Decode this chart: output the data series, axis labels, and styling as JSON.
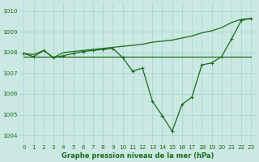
{
  "title": "Graphe pression niveau de la mer (hPa)",
  "background_color": "#cbe8e3",
  "line_color": "#1a6b1a",
  "grid_color": "#b0d8d2",
  "xlim": [
    -0.5,
    23.5
  ],
  "ylim": [
    1003.6,
    1010.4
  ],
  "yticks": [
    1004,
    1005,
    1006,
    1007,
    1008,
    1009,
    1010
  ],
  "xticks": [
    0,
    1,
    2,
    3,
    4,
    5,
    6,
    7,
    8,
    9,
    10,
    11,
    12,
    13,
    14,
    15,
    16,
    17,
    18,
    19,
    20,
    21,
    22,
    23
  ],
  "series_flat": {
    "x": [
      0,
      23
    ],
    "y": [
      1007.8,
      1007.8
    ]
  },
  "series_rising": {
    "x": [
      0,
      1,
      2,
      3,
      4,
      5,
      6,
      7,
      8,
      9,
      10,
      11,
      12,
      13,
      14,
      15,
      16,
      17,
      18,
      19,
      20,
      21,
      22,
      23
    ],
    "y": [
      1007.95,
      1007.9,
      1008.1,
      1007.75,
      1008.0,
      1008.05,
      1008.1,
      1008.15,
      1008.2,
      1008.25,
      1008.3,
      1008.35,
      1008.4,
      1008.5,
      1008.55,
      1008.6,
      1008.7,
      1008.8,
      1008.95,
      1009.05,
      1009.2,
      1009.45,
      1009.6,
      1009.65
    ]
  },
  "series_main": {
    "x": [
      0,
      1,
      2,
      3,
      4,
      5,
      6,
      7,
      8,
      9,
      10,
      11,
      12,
      13,
      14,
      15,
      16,
      17,
      18,
      19,
      20,
      21,
      22,
      23
    ],
    "y": [
      1007.95,
      1007.8,
      1008.1,
      1007.75,
      1007.85,
      1007.95,
      1008.05,
      1008.1,
      1008.15,
      1008.2,
      1007.75,
      1007.1,
      1007.25,
      1005.65,
      1004.95,
      1004.2,
      1005.5,
      1005.85,
      1007.4,
      1007.5,
      1007.8,
      1008.65,
      1009.55,
      1009.65
    ]
  }
}
